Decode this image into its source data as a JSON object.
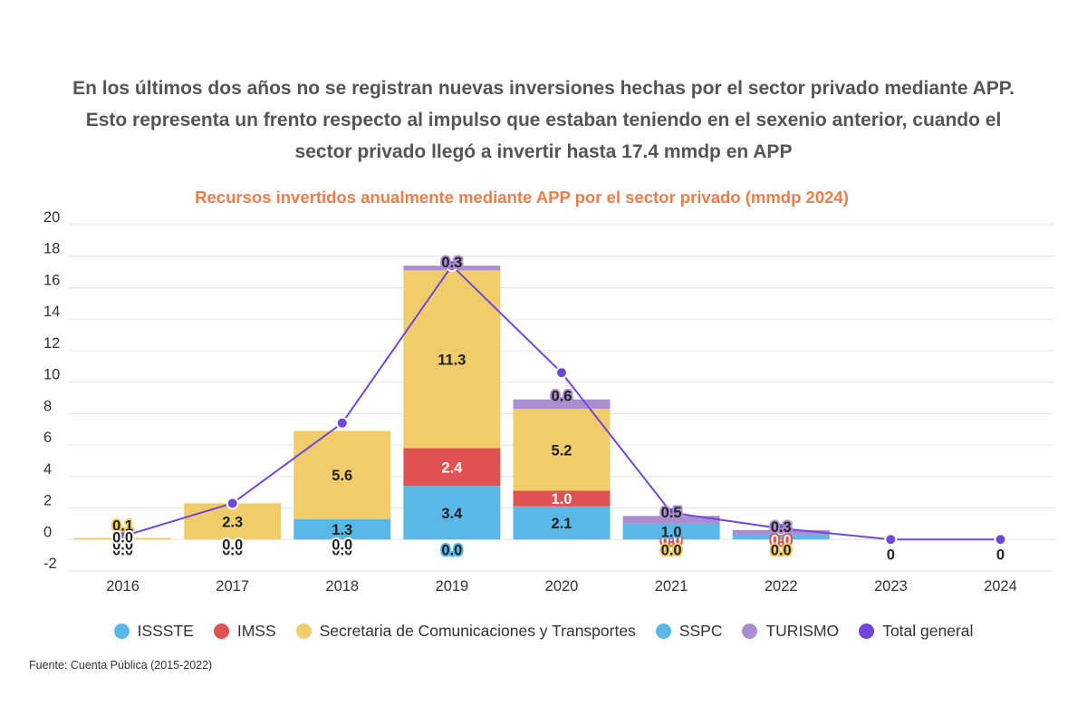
{
  "headline": {
    "line1": "En los últimos dos años no se registran nuevas inversiones hechas por el sector privado mediante APP.",
    "line2": "Esto representa un frento respecto al impulso que estaban teniendo en el sexenio anterior, cuando el",
    "line3": "sector privado llegó a invertir hasta 17.4 mmdp en APP"
  },
  "source": "Fuente: Cuenta Pública (2015-2022)",
  "chart_data": {
    "type": "bar",
    "title": "Recursos invertidos anualmente mediante APP por el sector privado (mmdp 2024)",
    "categories": [
      "2016",
      "2017",
      "2018",
      "2019",
      "2020",
      "2021",
      "2022",
      "2023",
      "2024"
    ],
    "ylim": [
      -2,
      20
    ],
    "yticks": [
      -2,
      0,
      2,
      4,
      6,
      8,
      10,
      12,
      14,
      16,
      18,
      20
    ],
    "grid": true,
    "legend_position": "bottom",
    "stacked": true,
    "series": [
      {
        "name": "ISSSTE",
        "color": "#5ab8e6",
        "values": [
          0.0,
          0.0,
          0.0,
          0.0,
          null,
          null,
          null,
          null,
          null
        ],
        "labels": [
          "0.0",
          "0.0",
          "0.0",
          "0.0",
          "",
          "",
          "",
          "",
          ""
        ]
      },
      {
        "name": "IMSS",
        "color": "#e05252",
        "values": [
          0.0,
          0.0,
          0.0,
          2.4,
          1.0,
          0.0,
          0.0,
          null,
          null
        ],
        "labels": [
          "0.0",
          "0.0",
          "0.0",
          "2.4",
          "1.0",
          "0.0",
          "0.0",
          "",
          ""
        ]
      },
      {
        "name": "Secretaria de Comunicaciones y Transportes",
        "color": "#f0cd6a",
        "values": [
          0.1,
          2.3,
          5.6,
          11.3,
          5.2,
          0.0,
          0.0,
          null,
          null
        ],
        "labels": [
          "0.1",
          "2.3",
          "5.6",
          "11.3",
          "5.2",
          "0.0",
          "0.0",
          "",
          ""
        ]
      },
      {
        "name": "SSPC",
        "color": "#5ab8e6",
        "values": [
          0.0,
          null,
          1.3,
          3.4,
          2.1,
          1.0,
          0.3,
          null,
          null
        ],
        "labels": [
          "0.0",
          "",
          "1.3",
          "3.4",
          "2.1",
          "1.0",
          "",
          "",
          ""
        ]
      },
      {
        "name": "TURISMO",
        "color": "#ab8ed1",
        "values": [
          null,
          null,
          null,
          0.3,
          0.6,
          0.5,
          0.3,
          null,
          null
        ],
        "labels": [
          "",
          "",
          "",
          "0.3",
          "0.6",
          "0.5",
          "0.3",
          "",
          ""
        ]
      },
      {
        "name": "Total general",
        "color": "#7048d9",
        "type": "line",
        "values": [
          0.2,
          2.3,
          7.4,
          17.4,
          10.6,
          1.7,
          0.7,
          0,
          0
        ],
        "labels": [
          "",
          "",
          "",
          "",
          "",
          "",
          "",
          "0",
          "0"
        ]
      }
    ]
  }
}
